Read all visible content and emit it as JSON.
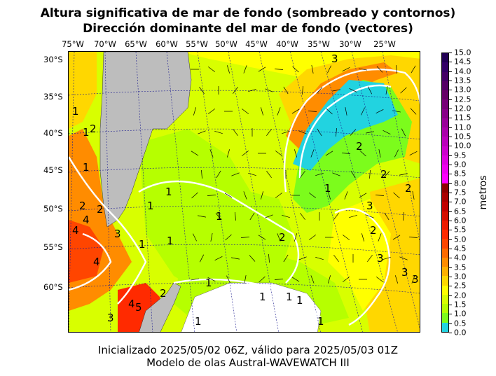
{
  "title_line1": "Altura significativa de mar de fondo (sombreado y contornos)",
  "title_line2": "Dirección dominante del mar de fondo (vectores)",
  "lon_labels": [
    "75°W",
    "70°W",
    "65°W",
    "60°W",
    "55°W",
    "50°W",
    "45°W",
    "40°W",
    "35°W",
    "30°W",
    "25°W"
  ],
  "lat_labels": [
    "30°S",
    "35°S",
    "40°S",
    "45°S",
    "50°S",
    "55°S",
    "60°S"
  ],
  "colorbar": {
    "label": "metros",
    "ticks": [
      "0.0",
      "0.5",
      "1.0",
      "1.5",
      "2.0",
      "2.5",
      "3.0",
      "3.5",
      "4.0",
      "4.5",
      "5.0",
      "5.5",
      "6.0",
      "6.5",
      "7.0",
      "7.5",
      "8.0",
      "8.5",
      "9.0",
      "9.5",
      "10.0",
      "10.5",
      "11.0",
      "11.5",
      "12.0",
      "12.5",
      "13.0",
      "13.5",
      "14.0",
      "14.5",
      "15.0"
    ],
    "colors": [
      "#22d3e0",
      "#7cfc1c",
      "#b6ff00",
      "#d8ff00",
      "#ffff00",
      "#ffd700",
      "#ffb000",
      "#ff8c00",
      "#ff6a00",
      "#ff4500",
      "#ff2a00",
      "#ee1a00",
      "#d60d00",
      "#c20000",
      "#aa0000",
      "#8e0000",
      "#ff00ff",
      "#ee00ee",
      "#dd00dd",
      "#cc00cc",
      "#bb00bb",
      "#aa00aa",
      "#990099",
      "#880088",
      "#770077",
      "#660066",
      "#550066",
      "#440066",
      "#330066",
      "#220055"
    ]
  },
  "contour_labels": [
    "1",
    "1",
    "1",
    "1",
    "1",
    "1",
    "1",
    "1",
    "1",
    "1",
    "1",
    "1",
    "1",
    "2",
    "2",
    "2",
    "2",
    "2",
    "2",
    "2",
    "2",
    "2",
    "3",
    "3",
    "3",
    "3",
    "3",
    "3",
    "4",
    "4",
    "4",
    "4",
    "5",
    "2",
    "3",
    "1",
    "1"
  ],
  "footer_line1": "Inicializado 2025/05/02 06Z, válido para 2025/05/03 01Z",
  "footer_line2": "Modelo de olas Austral-WAVEWATCH III"
}
